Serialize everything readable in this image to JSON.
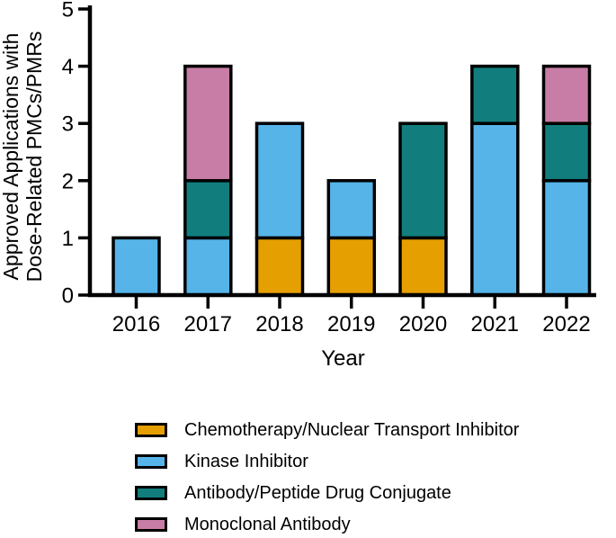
{
  "chart_data": {
    "type": "bar",
    "subtype": "stacked",
    "categories": [
      "2016",
      "2017",
      "2018",
      "2019",
      "2020",
      "2021",
      "2022"
    ],
    "series": [
      {
        "name": "Chemotherapy/Nuclear Transport Inhibitor",
        "color": "#E69F00",
        "values": [
          0,
          0,
          1,
          1,
          1,
          0,
          0
        ]
      },
      {
        "name": "Kinase Inhibitor",
        "color": "#56B4E9",
        "values": [
          1,
          1,
          2,
          1,
          0,
          3,
          2
        ]
      },
      {
        "name": "Antibody/Peptide Drug Conjugate",
        "color": "#117E7D",
        "values": [
          0,
          1,
          0,
          0,
          2,
          1,
          1
        ]
      },
      {
        "name": "Monoclonal Antibody",
        "color": "#C87DA6",
        "values": [
          0,
          2,
          0,
          0,
          0,
          0,
          1
        ]
      }
    ],
    "stack_totals": [
      1,
      4,
      3,
      2,
      3,
      4,
      4
    ],
    "xlabel": "Year",
    "ylabel_line1": "Approved Applications with",
    "ylabel_line2": "Dose-Related PMCs/PMRs",
    "ylim": [
      0,
      5
    ],
    "yticks": [
      0,
      1,
      2,
      3,
      4,
      5
    ],
    "grid": false,
    "legend_position": "bottom",
    "axis_color": "#000000",
    "bar_outline_color": "#000000"
  },
  "legend": {
    "items": [
      {
        "label": "Chemotherapy/Nuclear Transport Inhibitor",
        "color": "#E69F00"
      },
      {
        "label": "Kinase Inhibitor",
        "color": "#56B4E9"
      },
      {
        "label": "Antibody/Peptide Drug Conjugate",
        "color": "#117E7D"
      },
      {
        "label": "Monoclonal Antibody",
        "color": "#C87DA6"
      }
    ]
  }
}
